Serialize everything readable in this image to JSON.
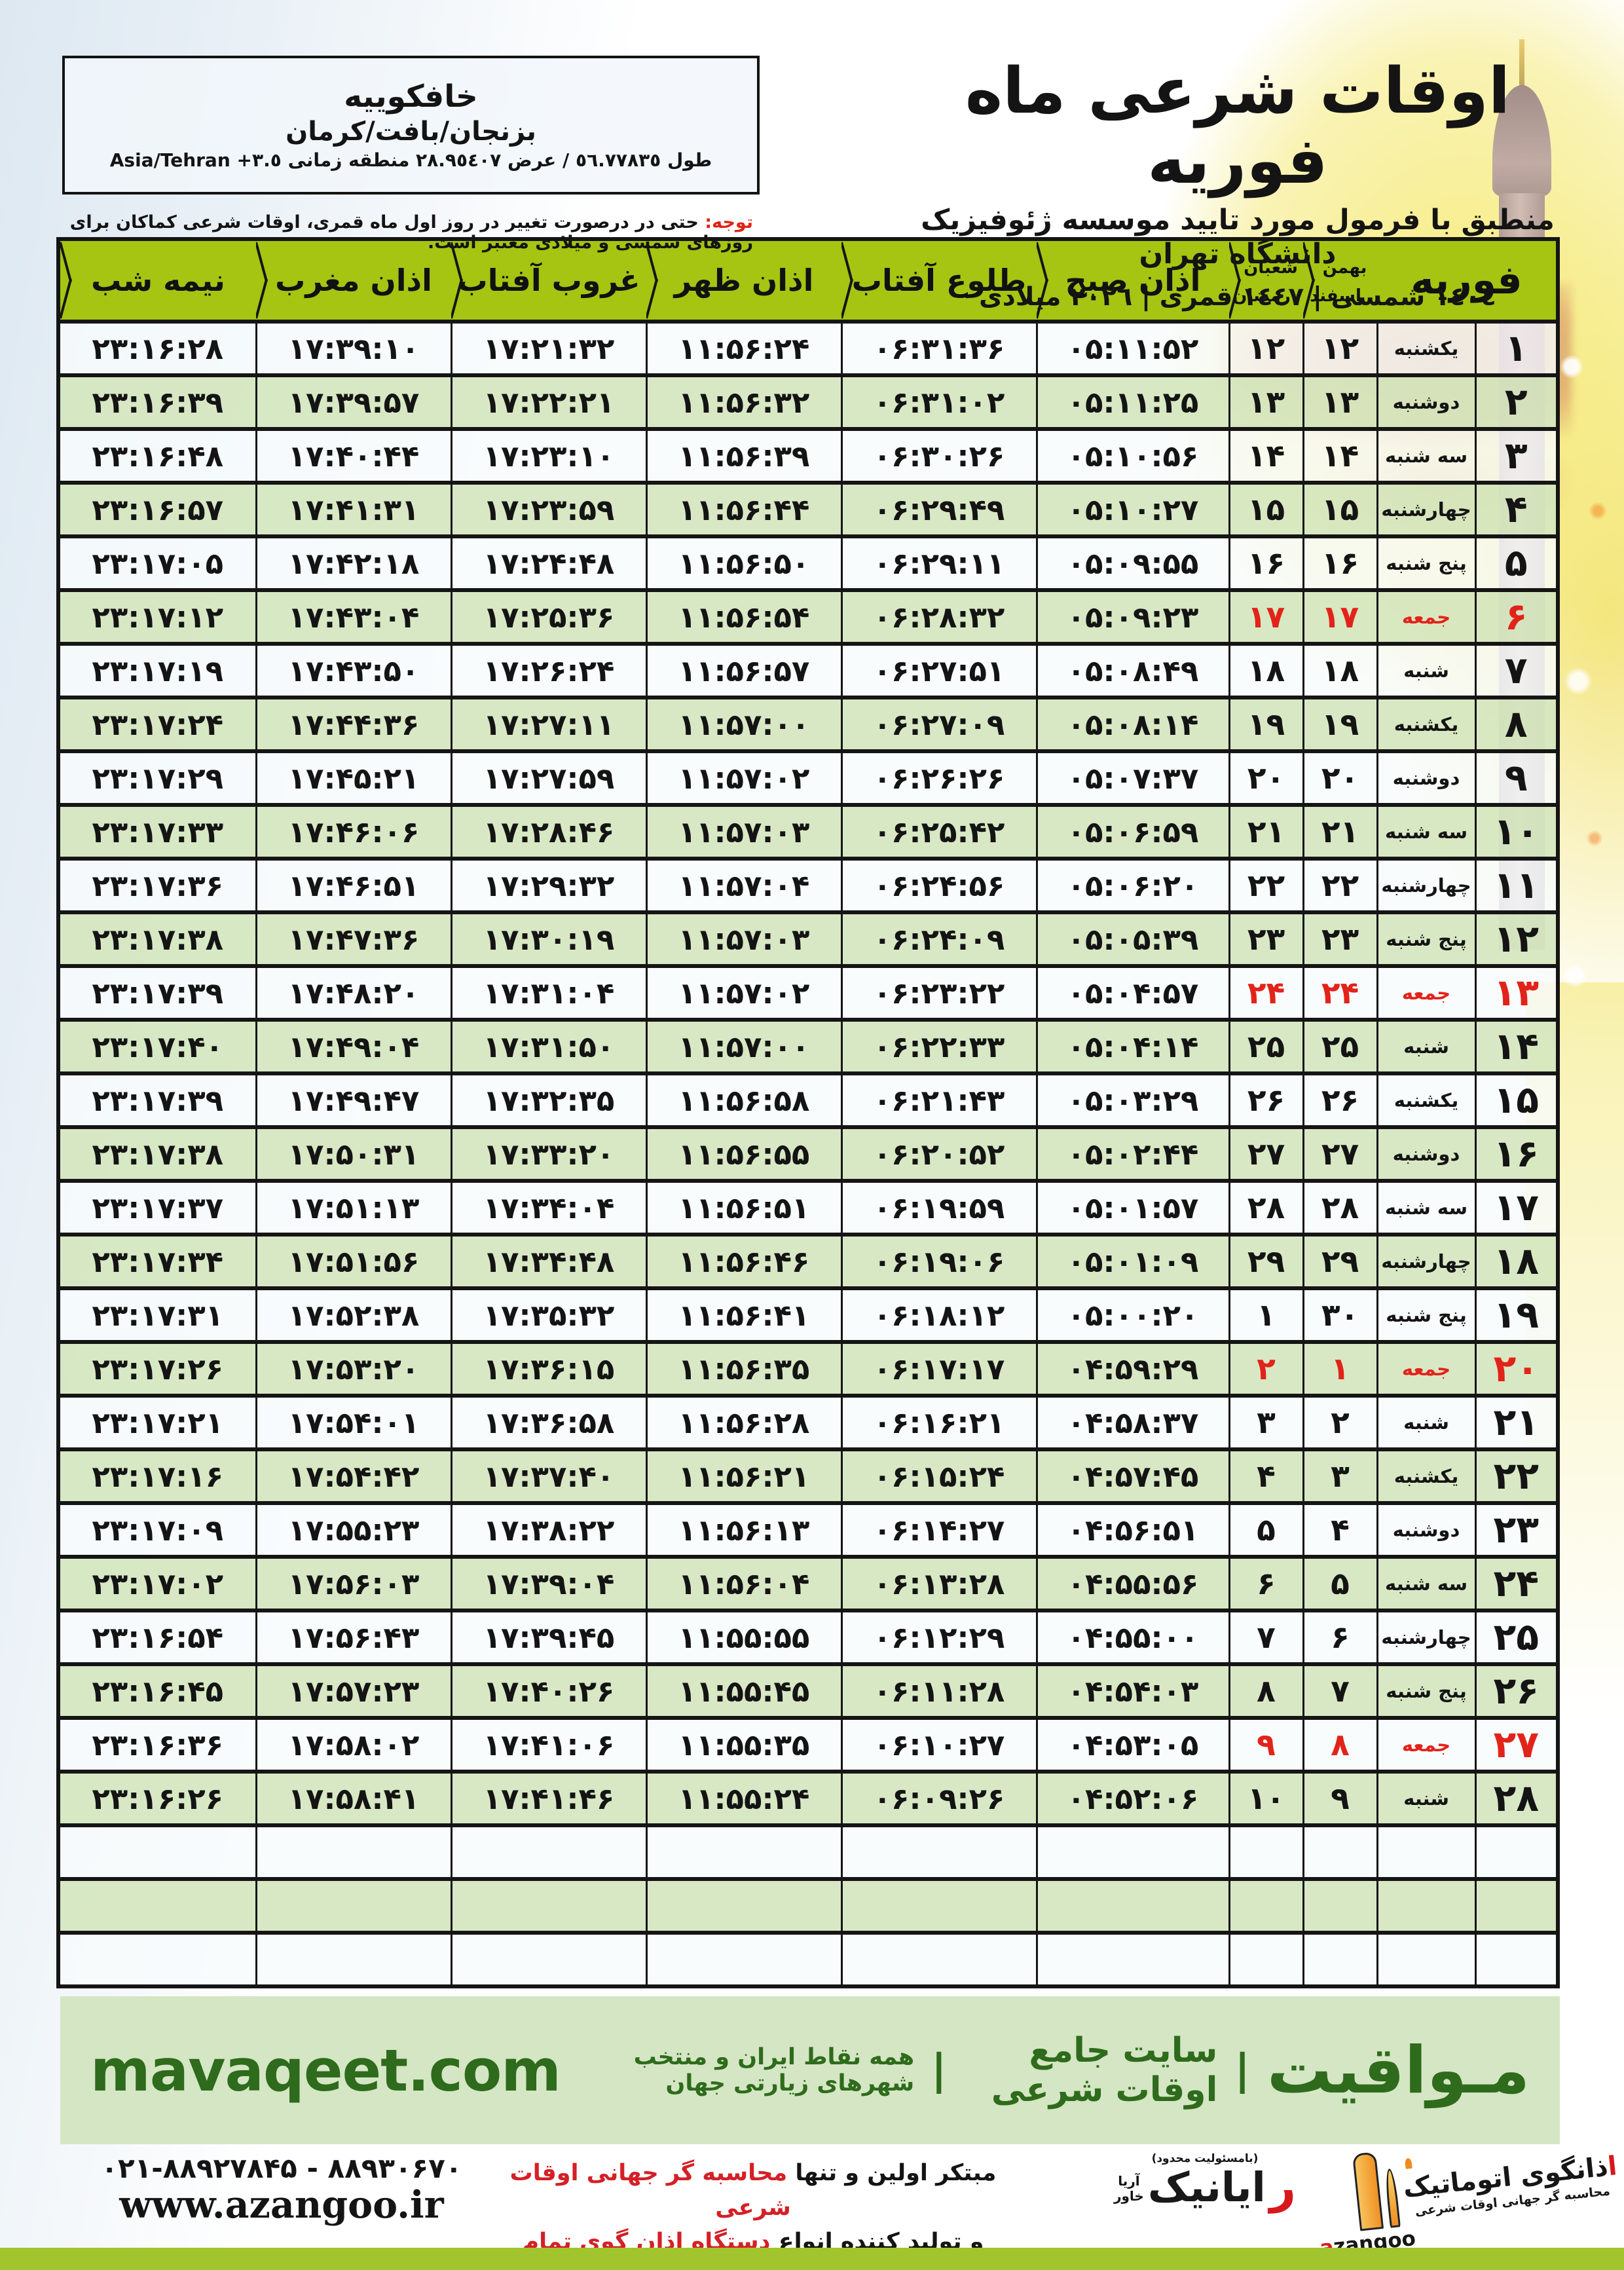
{
  "page": {
    "title": "اوقات شرعی ماه فوریه",
    "subtitle": "منطبق با فرمول مورد تایید موسسه ژئوفیزیک دانشگاه تهران",
    "date_line": "١٤٠٤ شمسی | ١٤٤٧ قمری | ٢٠٢٦ میلادی"
  },
  "info_box": {
    "location_name": "خافکوییه",
    "region": "بزنجان/بافت/کرمان",
    "coords_rtl": "طول ٥٦.٧٧٨٣٥ / عرض ٢٨.٩٥٤٠٧ منطقه زمانی",
    "coords_ltr": "Asia/Tehran +٣.٥"
  },
  "notice": {
    "label": "توجه:",
    "text": " حتی در درصورت تغییر در روز اول ماه قمری، اوقات شرعی کماکان برای روزهای شمسی و میلادی معتبر است."
  },
  "colors": {
    "header_green": "#a6c412",
    "row_green": "#d6e7c2",
    "friday_red": "#e2231a",
    "band_green": "#d5e6c4",
    "band_text_green": "#2e6b1c",
    "strip_green": "#a2c42d",
    "footer_red": "#d42027"
  },
  "table": {
    "headers": {
      "february": "فوریه",
      "bahman_top": "بهمن",
      "bahman_bottom": "اسفند",
      "shaban_top": "شعبان",
      "shaban_bottom": "رمضان",
      "sobh": "اذان صبح",
      "tolu": "طلوع آفتاب",
      "zohr": "اذان ظهر",
      "ghorub": "غروب آفتاب",
      "maghreb": "اذان مغرب",
      "nimeshab": "نیمه شب"
    },
    "columns_order": [
      "feb",
      "weekday",
      "bahman",
      "shaban",
      "sobh",
      "tolu",
      "zohr",
      "ghorub",
      "maghreb",
      "nimeshab"
    ],
    "time_columns": [
      "sobh",
      "tolu",
      "zohr",
      "ghorub",
      "maghreb",
      "nimeshab"
    ],
    "empty_rows": 3,
    "rows": [
      {
        "feb": "۱",
        "weekday": "یکشنبه",
        "bahman": "۱۲",
        "shaban": "۱۲",
        "sobh": "۰۵:۱۱:۵۲",
        "tolu": "۰۶:۳۱:۳۶",
        "zohr": "۱۱:۵۶:۲۴",
        "ghorub": "۱۷:۲۱:۳۲",
        "maghreb": "۱۷:۳۹:۱۰",
        "nimeshab": "۲۳:۱۶:۲۸",
        "friday": false
      },
      {
        "feb": "۲",
        "weekday": "دوشنبه",
        "bahman": "۱۳",
        "shaban": "۱۳",
        "sobh": "۰۵:۱۱:۲۵",
        "tolu": "۰۶:۳۱:۰۲",
        "zohr": "۱۱:۵۶:۳۲",
        "ghorub": "۱۷:۲۲:۲۱",
        "maghreb": "۱۷:۳۹:۵۷",
        "nimeshab": "۲۳:۱۶:۳۹",
        "friday": false
      },
      {
        "feb": "۳",
        "weekday": "سه شنبه",
        "bahman": "۱۴",
        "shaban": "۱۴",
        "sobh": "۰۵:۱۰:۵۶",
        "tolu": "۰۶:۳۰:۲۶",
        "zohr": "۱۱:۵۶:۳۹",
        "ghorub": "۱۷:۲۳:۱۰",
        "maghreb": "۱۷:۴۰:۴۴",
        "nimeshab": "۲۳:۱۶:۴۸",
        "friday": false
      },
      {
        "feb": "۴",
        "weekday": "چهارشنبه",
        "bahman": "۱۵",
        "shaban": "۱۵",
        "sobh": "۰۵:۱۰:۲۷",
        "tolu": "۰۶:۲۹:۴۹",
        "zohr": "۱۱:۵۶:۴۴",
        "ghorub": "۱۷:۲۳:۵۹",
        "maghreb": "۱۷:۴۱:۳۱",
        "nimeshab": "۲۳:۱۶:۵۷",
        "friday": false
      },
      {
        "feb": "۵",
        "weekday": "پنج شنبه",
        "bahman": "۱۶",
        "shaban": "۱۶",
        "sobh": "۰۵:۰۹:۵۵",
        "tolu": "۰۶:۲۹:۱۱",
        "zohr": "۱۱:۵۶:۵۰",
        "ghorub": "۱۷:۲۴:۴۸",
        "maghreb": "۱۷:۴۲:۱۸",
        "nimeshab": "۲۳:۱۷:۰۵",
        "friday": false
      },
      {
        "feb": "۶",
        "weekday": "جمعه",
        "bahman": "۱۷",
        "shaban": "۱۷",
        "sobh": "۰۵:۰۹:۲۳",
        "tolu": "۰۶:۲۸:۳۲",
        "zohr": "۱۱:۵۶:۵۴",
        "ghorub": "۱۷:۲۵:۳۶",
        "maghreb": "۱۷:۴۳:۰۴",
        "nimeshab": "۲۳:۱۷:۱۲",
        "friday": true
      },
      {
        "feb": "۷",
        "weekday": "شنبه",
        "bahman": "۱۸",
        "shaban": "۱۸",
        "sobh": "۰۵:۰۸:۴۹",
        "tolu": "۰۶:۲۷:۵۱",
        "zohr": "۱۱:۵۶:۵۷",
        "ghorub": "۱۷:۲۶:۲۴",
        "maghreb": "۱۷:۴۳:۵۰",
        "nimeshab": "۲۳:۱۷:۱۹",
        "friday": false
      },
      {
        "feb": "۸",
        "weekday": "یکشنبه",
        "bahman": "۱۹",
        "shaban": "۱۹",
        "sobh": "۰۵:۰۸:۱۴",
        "tolu": "۰۶:۲۷:۰۹",
        "zohr": "۱۱:۵۷:۰۰",
        "ghorub": "۱۷:۲۷:۱۱",
        "maghreb": "۱۷:۴۴:۳۶",
        "nimeshab": "۲۳:۱۷:۲۴",
        "friday": false
      },
      {
        "feb": "۹",
        "weekday": "دوشنبه",
        "bahman": "۲۰",
        "shaban": "۲۰",
        "sobh": "۰۵:۰۷:۳۷",
        "tolu": "۰۶:۲۶:۲۶",
        "zohr": "۱۱:۵۷:۰۲",
        "ghorub": "۱۷:۲۷:۵۹",
        "maghreb": "۱۷:۴۵:۲۱",
        "nimeshab": "۲۳:۱۷:۲۹",
        "friday": false
      },
      {
        "feb": "۱۰",
        "weekday": "سه شنبه",
        "bahman": "۲۱",
        "shaban": "۲۱",
        "sobh": "۰۵:۰۶:۵۹",
        "tolu": "۰۶:۲۵:۴۲",
        "zohr": "۱۱:۵۷:۰۳",
        "ghorub": "۱۷:۲۸:۴۶",
        "maghreb": "۱۷:۴۶:۰۶",
        "nimeshab": "۲۳:۱۷:۳۳",
        "friday": false
      },
      {
        "feb": "۱۱",
        "weekday": "چهارشنبه",
        "bahman": "۲۲",
        "shaban": "۲۲",
        "sobh": "۰۵:۰۶:۲۰",
        "tolu": "۰۶:۲۴:۵۶",
        "zohr": "۱۱:۵۷:۰۴",
        "ghorub": "۱۷:۲۹:۳۲",
        "maghreb": "۱۷:۴۶:۵۱",
        "nimeshab": "۲۳:۱۷:۳۶",
        "friday": false
      },
      {
        "feb": "۱۲",
        "weekday": "پنج شنبه",
        "bahman": "۲۳",
        "shaban": "۲۳",
        "sobh": "۰۵:۰۵:۳۹",
        "tolu": "۰۶:۲۴:۰۹",
        "zohr": "۱۱:۵۷:۰۳",
        "ghorub": "۱۷:۳۰:۱۹",
        "maghreb": "۱۷:۴۷:۳۶",
        "nimeshab": "۲۳:۱۷:۳۸",
        "friday": false
      },
      {
        "feb": "۱۳",
        "weekday": "جمعه",
        "bahman": "۲۴",
        "shaban": "۲۴",
        "sobh": "۰۵:۰۴:۵۷",
        "tolu": "۰۶:۲۳:۲۲",
        "zohr": "۱۱:۵۷:۰۲",
        "ghorub": "۱۷:۳۱:۰۴",
        "maghreb": "۱۷:۴۸:۲۰",
        "nimeshab": "۲۳:۱۷:۳۹",
        "friday": true
      },
      {
        "feb": "۱۴",
        "weekday": "شنبه",
        "bahman": "۲۵",
        "shaban": "۲۵",
        "sobh": "۰۵:۰۴:۱۴",
        "tolu": "۰۶:۲۲:۳۳",
        "zohr": "۱۱:۵۷:۰۰",
        "ghorub": "۱۷:۳۱:۵۰",
        "maghreb": "۱۷:۴۹:۰۴",
        "nimeshab": "۲۳:۱۷:۴۰",
        "friday": false
      },
      {
        "feb": "۱۵",
        "weekday": "یکشنبه",
        "bahman": "۲۶",
        "shaban": "۲۶",
        "sobh": "۰۵:۰۳:۲۹",
        "tolu": "۰۶:۲۱:۴۳",
        "zohr": "۱۱:۵۶:۵۸",
        "ghorub": "۱۷:۳۲:۳۵",
        "maghreb": "۱۷:۴۹:۴۷",
        "nimeshab": "۲۳:۱۷:۳۹",
        "friday": false
      },
      {
        "feb": "۱۶",
        "weekday": "دوشنبه",
        "bahman": "۲۷",
        "shaban": "۲۷",
        "sobh": "۰۵:۰۲:۴۴",
        "tolu": "۰۶:۲۰:۵۲",
        "zohr": "۱۱:۵۶:۵۵",
        "ghorub": "۱۷:۳۳:۲۰",
        "maghreb": "۱۷:۵۰:۳۱",
        "nimeshab": "۲۳:۱۷:۳۸",
        "friday": false
      },
      {
        "feb": "۱۷",
        "weekday": "سه شنبه",
        "bahman": "۲۸",
        "shaban": "۲۸",
        "sobh": "۰۵:۰۱:۵۷",
        "tolu": "۰۶:۱۹:۵۹",
        "zohr": "۱۱:۵۶:۵۱",
        "ghorub": "۱۷:۳۴:۰۴",
        "maghreb": "۱۷:۵۱:۱۳",
        "nimeshab": "۲۳:۱۷:۳۷",
        "friday": false
      },
      {
        "feb": "۱۸",
        "weekday": "چهارشنبه",
        "bahman": "۲۹",
        "shaban": "۲۹",
        "sobh": "۰۵:۰۱:۰۹",
        "tolu": "۰۶:۱۹:۰۶",
        "zohr": "۱۱:۵۶:۴۶",
        "ghorub": "۱۷:۳۴:۴۸",
        "maghreb": "۱۷:۵۱:۵۶",
        "nimeshab": "۲۳:۱۷:۳۴",
        "friday": false
      },
      {
        "feb": "۱۹",
        "weekday": "پنج شنبه",
        "bahman": "۳۰",
        "shaban": "۱",
        "sobh": "۰۵:۰۰:۲۰",
        "tolu": "۰۶:۱۸:۱۲",
        "zohr": "۱۱:۵۶:۴۱",
        "ghorub": "۱۷:۳۵:۳۲",
        "maghreb": "۱۷:۵۲:۳۸",
        "nimeshab": "۲۳:۱۷:۳۱",
        "friday": false
      },
      {
        "feb": "۲۰",
        "weekday": "جمعه",
        "bahman": "۱",
        "shaban": "۲",
        "sobh": "۰۴:۵۹:۲۹",
        "tolu": "۰۶:۱۷:۱۷",
        "zohr": "۱۱:۵۶:۳۵",
        "ghorub": "۱۷:۳۶:۱۵",
        "maghreb": "۱۷:۵۳:۲۰",
        "nimeshab": "۲۳:۱۷:۲۶",
        "friday": true
      },
      {
        "feb": "۲۱",
        "weekday": "شنبه",
        "bahman": "۲",
        "shaban": "۳",
        "sobh": "۰۴:۵۸:۳۷",
        "tolu": "۰۶:۱۶:۲۱",
        "zohr": "۱۱:۵۶:۲۸",
        "ghorub": "۱۷:۳۶:۵۸",
        "maghreb": "۱۷:۵۴:۰۱",
        "nimeshab": "۲۳:۱۷:۲۱",
        "friday": false
      },
      {
        "feb": "۲۲",
        "weekday": "یکشنبه",
        "bahman": "۳",
        "shaban": "۴",
        "sobh": "۰۴:۵۷:۴۵",
        "tolu": "۰۶:۱۵:۲۴",
        "zohr": "۱۱:۵۶:۲۱",
        "ghorub": "۱۷:۳۷:۴۰",
        "maghreb": "۱۷:۵۴:۴۲",
        "nimeshab": "۲۳:۱۷:۱۶",
        "friday": false
      },
      {
        "feb": "۲۳",
        "weekday": "دوشنبه",
        "bahman": "۴",
        "shaban": "۵",
        "sobh": "۰۴:۵۶:۵۱",
        "tolu": "۰۶:۱۴:۲۷",
        "zohr": "۱۱:۵۶:۱۳",
        "ghorub": "۱۷:۳۸:۲۲",
        "maghreb": "۱۷:۵۵:۲۳",
        "nimeshab": "۲۳:۱۷:۰۹",
        "friday": false
      },
      {
        "feb": "۲۴",
        "weekday": "سه شنبه",
        "bahman": "۵",
        "shaban": "۶",
        "sobh": "۰۴:۵۵:۵۶",
        "tolu": "۰۶:۱۳:۲۸",
        "zohr": "۱۱:۵۶:۰۴",
        "ghorub": "۱۷:۳۹:۰۴",
        "maghreb": "۱۷:۵۶:۰۳",
        "nimeshab": "۲۳:۱۷:۰۲",
        "friday": false
      },
      {
        "feb": "۲۵",
        "weekday": "چهارشنبه",
        "bahman": "۶",
        "shaban": "۷",
        "sobh": "۰۴:۵۵:۰۰",
        "tolu": "۰۶:۱۲:۲۹",
        "zohr": "۱۱:۵۵:۵۵",
        "ghorub": "۱۷:۳۹:۴۵",
        "maghreb": "۱۷:۵۶:۴۳",
        "nimeshab": "۲۳:۱۶:۵۴",
        "friday": false
      },
      {
        "feb": "۲۶",
        "weekday": "پنج شنبه",
        "bahman": "۷",
        "shaban": "۸",
        "sobh": "۰۴:۵۴:۰۳",
        "tolu": "۰۶:۱۱:۲۸",
        "zohr": "۱۱:۵۵:۴۵",
        "ghorub": "۱۷:۴۰:۲۶",
        "maghreb": "۱۷:۵۷:۲۳",
        "nimeshab": "۲۳:۱۶:۴۵",
        "friday": false
      },
      {
        "feb": "۲۷",
        "weekday": "جمعه",
        "bahman": "۸",
        "shaban": "۹",
        "sobh": "۰۴:۵۳:۰۵",
        "tolu": "۰۶:۱۰:۲۷",
        "zohr": "۱۱:۵۵:۳۵",
        "ghorub": "۱۷:۴۱:۰۶",
        "maghreb": "۱۷:۵۸:۰۲",
        "nimeshab": "۲۳:۱۶:۳۶",
        "friday": true
      },
      {
        "feb": "۲۸",
        "weekday": "شنبه",
        "bahman": "۹",
        "shaban": "۱۰",
        "sobh": "۰۴:۵۲:۰۶",
        "tolu": "۰۶:۰۹:۲۶",
        "zohr": "۱۱:۵۵:۲۴",
        "ghorub": "۱۷:۴۱:۴۶",
        "maghreb": "۱۷:۵۸:۴۱",
        "nimeshab": "۲۳:۱۶:۲۶",
        "friday": false
      }
    ]
  },
  "band": {
    "brand": "مـواقیت",
    "sep": "|",
    "site_label": "سایت جامع اوقات شرعی",
    "coverage": "همه نقاط ایران و منتخب شهرهای زیارتی جهان",
    "domain": "mavaqeet.com"
  },
  "footer": {
    "phones": "۰۲۱-۸۸۹۲۷۸۴۵ - ۸۸۹۳۰۶۷۰",
    "website": "www.azangoo.ir",
    "line1_black": "مبتکر اولین و تنها ",
    "line1_red": "محاسبه گر جهانی اوقات شرعی",
    "line2_black": "و تولید کننده انواع ",
    "line2_red": "دستگاه اذان گوی تمام خودکار ماهواره ای",
    "rayanik": {
      "note": "(بامسئولیت محدود)",
      "initial": "ر",
      "name": "ایانیک",
      "sub_top": "آریا",
      "sub_bottom": "خاور"
    },
    "azangoo": {
      "initial": "ا",
      "name": "ذانگوی اتوماتیک",
      "tagline": "محاسبه گر جهانی اوقات شرعی",
      "latin_a": "a",
      "latin_rest": "zangoo"
    }
  }
}
